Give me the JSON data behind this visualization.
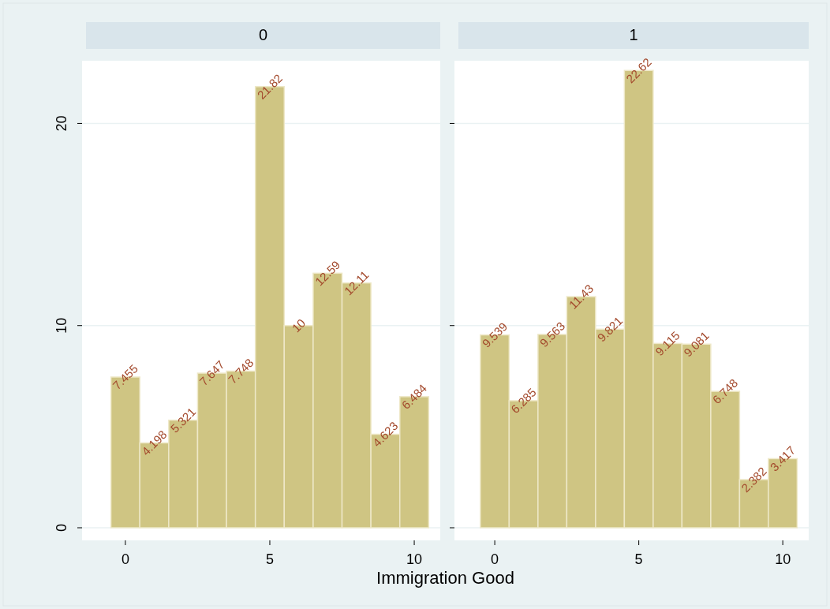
{
  "chart_data": [
    {
      "type": "histogram",
      "title": "0",
      "xlabel": "Immigration Good",
      "bins": [
        -0.5,
        0.5,
        1.5,
        2.5,
        3.5,
        4.5,
        5.5,
        6.5,
        7.5,
        8.5,
        9.5,
        10.5
      ],
      "values": [
        7.455,
        4.198,
        5.321,
        7.647,
        7.748,
        21.82,
        10,
        12.59,
        12.11,
        4.623,
        6.484
      ],
      "color": "#cfc583",
      "data_labels": true,
      "xlim": [
        -1.5,
        10.9
      ],
      "xticks": [
        0,
        5,
        10
      ],
      "ylim": [
        0,
        23.1
      ],
      "yticks": [
        0,
        10,
        20
      ],
      "grid": "y"
    },
    {
      "type": "histogram",
      "title": "1",
      "bins": [
        -0.5,
        0.5,
        1.5,
        2.5,
        3.5,
        4.5,
        5.5,
        6.5,
        7.5,
        8.5,
        9.5,
        10.5
      ],
      "values": [
        9.539,
        6.285,
        9.563,
        11.43,
        9.821,
        22.62,
        9.115,
        9.081,
        6.748,
        2.382,
        3.417
      ],
      "color": "#cfc583",
      "data_labels": true,
      "xlim": [
        -1.4,
        10.9
      ],
      "xticks": [
        0,
        5,
        10
      ],
      "ylim": [
        0,
        23.1
      ],
      "yticks": [
        0,
        10,
        20
      ],
      "grid": "y",
      "tick_labels": "x"
    }
  ]
}
